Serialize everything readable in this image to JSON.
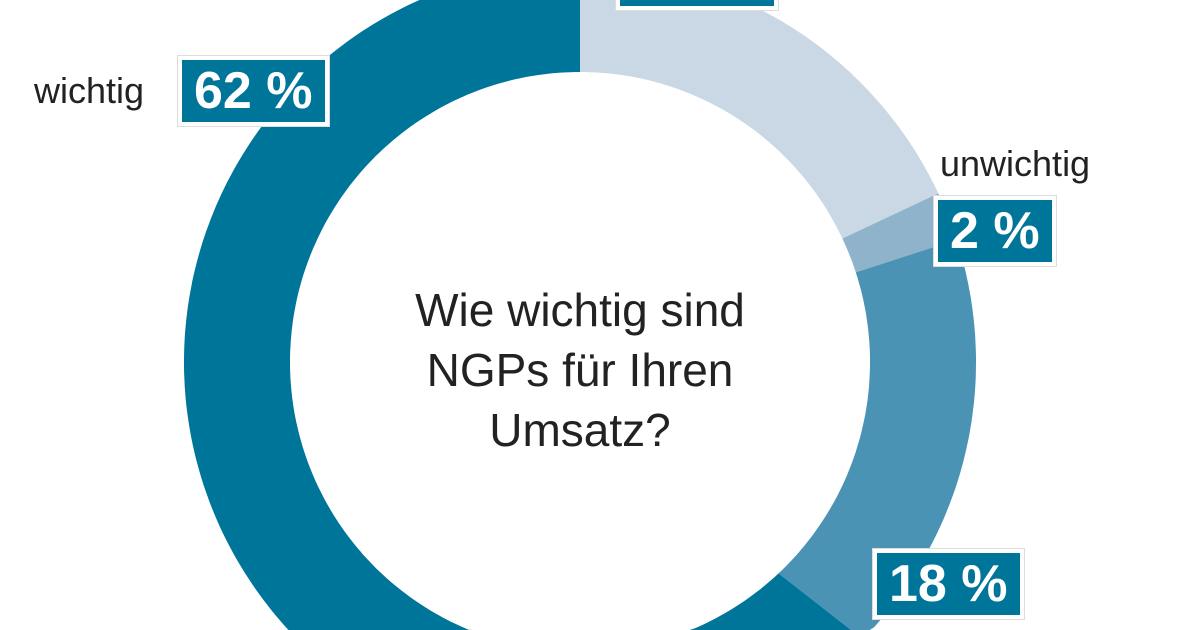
{
  "chart_data": {
    "type": "pie",
    "title": "Wie wichtig sind NGPs für Ihren Umsatz?",
    "slices": [
      {
        "label": "",
        "value": 18,
        "display": "",
        "color": "#c9d8e4"
      },
      {
        "label": "unwichtig",
        "value": 2,
        "display": "2 %",
        "color": "#8fb3cb"
      },
      {
        "label": "",
        "value": 18,
        "display": "18 %",
        "color": "#4a93b5"
      },
      {
        "label": "wichtig",
        "value": 62,
        "display": "62 %",
        "color": "#00759a"
      }
    ]
  }
}
